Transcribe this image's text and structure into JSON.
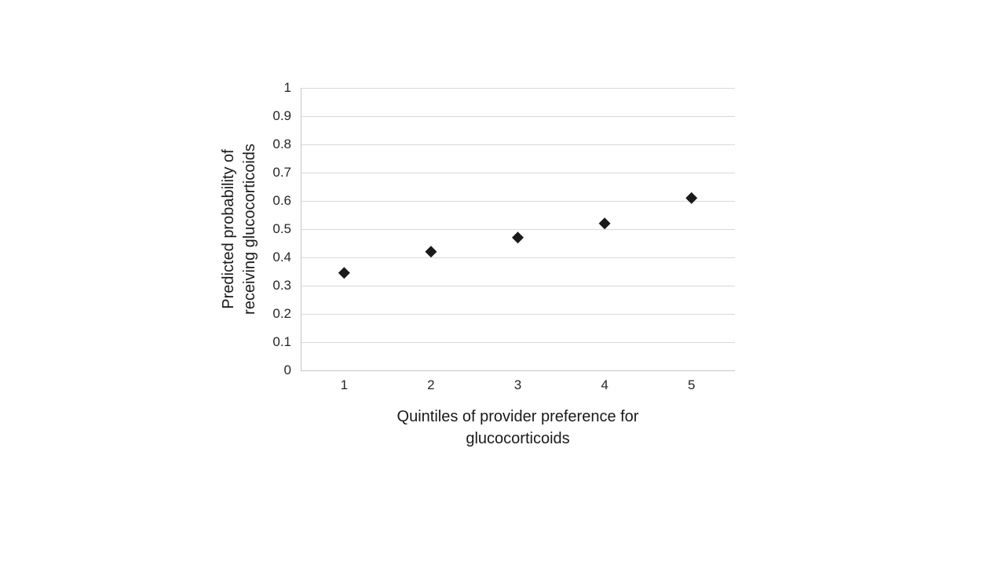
{
  "chart_data": {
    "type": "scatter",
    "title": "",
    "categories": [
      "1",
      "2",
      "3",
      "4",
      "5"
    ],
    "series": [
      {
        "name": "Predicted probability",
        "values": [
          0.345,
          0.42,
          0.47,
          0.52,
          0.61
        ]
      }
    ],
    "xlabel": "Quintiles of provider preference for glucocorticoids",
    "xlabel_lines": [
      "Quintiles of provider preference for",
      "glucocorticoids"
    ],
    "ylabel": "Predicted probability of receiving glucocorticoids",
    "ylabel_lines": [
      "Predicted probability of",
      "receiving glucocorticoids"
    ],
    "ylim": [
      0,
      1
    ],
    "ytick_step": 0.1,
    "yticks": [
      "0",
      "0.1",
      "0.2",
      "0.3",
      "0.4",
      "0.5",
      "0.6",
      "0.7",
      "0.8",
      "0.9",
      "1"
    ],
    "grid": "horizontal",
    "legend_position": "none",
    "marker": {
      "shape": "diamond",
      "size": 15,
      "color": "#1a1a1a"
    },
    "colors": {
      "background": "#ffffff",
      "gridline": "#d9d9d9",
      "axis_line": "#c6c6c6",
      "tick_label": "#262626",
      "axis_title": "#1a1a1a"
    }
  }
}
